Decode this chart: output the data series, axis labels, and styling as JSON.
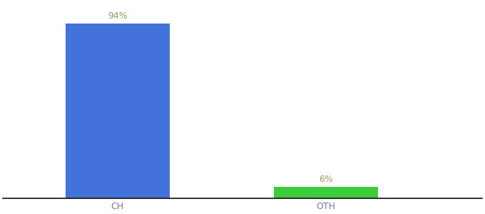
{
  "categories": [
    "CH",
    "OTH"
  ],
  "values": [
    94,
    6
  ],
  "bar_colors": [
    "#4472db",
    "#3dcc3d"
  ],
  "value_labels": [
    "94%",
    "6%"
  ],
  "ylim": [
    0,
    105
  ],
  "background_color": "#ffffff",
  "label_fontsize": 9,
  "tick_fontsize": 9,
  "bar_width": 0.5,
  "label_color": "#999966",
  "tick_color": "#7777aa"
}
